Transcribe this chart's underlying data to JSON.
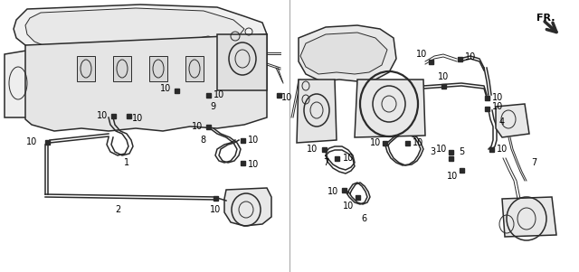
{
  "bg_color": "#ffffff",
  "line_color": "#2a2a2a",
  "label_color": "#000000",
  "figsize": [
    6.4,
    3.01
  ],
  "dpi": 100
}
